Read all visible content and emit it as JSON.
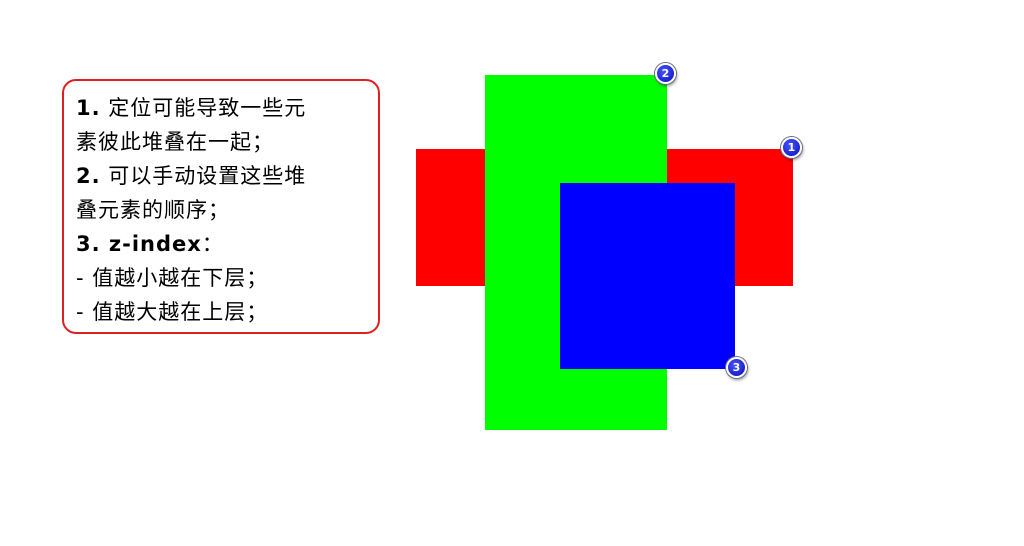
{
  "note": {
    "lines": [
      {
        "num": "1.",
        "text": " 定位可能导致一些元"
      },
      {
        "num": "",
        "text": "素彼此堆叠在一起；"
      },
      {
        "num": "2.",
        "text": " 可以手动设置这些堆"
      },
      {
        "num": "",
        "text": "叠元素的顺序；"
      },
      {
        "num": "3. z-index",
        "text": "："
      },
      {
        "num": "",
        "text": " - 值越小越在下层；"
      },
      {
        "num": "",
        "text": " - 值越大越在上层；"
      }
    ],
    "border_color": "#e02020"
  },
  "boxes": [
    {
      "id": "red",
      "color": "#ff0000",
      "badge": "1"
    },
    {
      "id": "green",
      "color": "#00ff00",
      "badge": "2"
    },
    {
      "id": "blue",
      "color": "#0000ff",
      "badge": "3"
    }
  ]
}
